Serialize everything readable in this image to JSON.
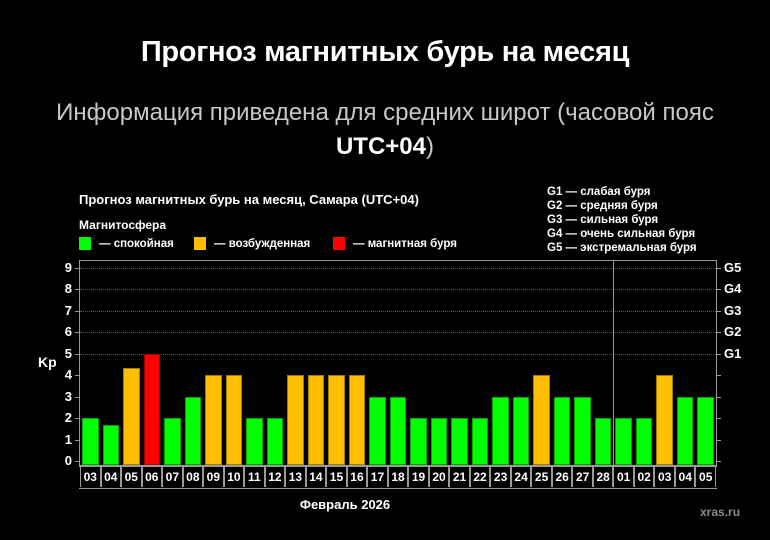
{
  "header": {
    "title": "Прогноз магнитных бурь на месяц",
    "subtitle_main": "Информация приведена для средних широт (часовой пояс",
    "subtitle_tz": "UTC+04",
    "subtitle_close": ")"
  },
  "legend": {
    "magnetosphere_label": "Магнитосфера",
    "items": [
      {
        "label": "— спокойная",
        "color": "#00ff00"
      },
      {
        "label": "— возбужденная",
        "color": "#ffbf00"
      },
      {
        "label": "— магнитная буря",
        "color": "#ff0000"
      }
    ],
    "g_scale": [
      "G1 — слабая буря",
      "G2 — средняя буря",
      "G3 — сильная буря",
      "G4 — очень сильная буря",
      "G5 — экстремальная буря"
    ]
  },
  "watermark": "xras.ru",
  "chart_data": {
    "type": "bar",
    "title": "Прогноз магнитных бурь на месяц, Самара (UTC+04)",
    "xlabel": "Февраль 2026",
    "ylabel": "Kp",
    "ylim": [
      0,
      9
    ],
    "yticks": [
      "0",
      "1",
      "2",
      "3",
      "4",
      "5",
      "6",
      "7",
      "8",
      "9"
    ],
    "right_axis_ticks": [
      {
        "label": "G1",
        "kp": 5
      },
      {
        "label": "G2",
        "kp": 6
      },
      {
        "label": "G3",
        "kp": 7
      },
      {
        "label": "G4",
        "kp": 8
      },
      {
        "label": "G5",
        "kp": 9
      }
    ],
    "grid": true,
    "month_separator_after_index": 25,
    "categories": [
      "03",
      "04",
      "05",
      "06",
      "07",
      "08",
      "09",
      "10",
      "11",
      "12",
      "13",
      "14",
      "15",
      "16",
      "17",
      "18",
      "19",
      "20",
      "21",
      "22",
      "23",
      "24",
      "25",
      "26",
      "27",
      "28",
      "01",
      "02",
      "03",
      "04",
      "05"
    ],
    "values": [
      2,
      1.67,
      4.33,
      5,
      2,
      3,
      4,
      4,
      2,
      2,
      4,
      4,
      4,
      4,
      3,
      3,
      2,
      2,
      2,
      2,
      3,
      3,
      4,
      3,
      3,
      2,
      2,
      2,
      4,
      3,
      3
    ],
    "levels": [
      "quiet",
      "quiet",
      "active",
      "storm",
      "quiet",
      "quiet",
      "active",
      "active",
      "quiet",
      "quiet",
      "active",
      "active",
      "active",
      "active",
      "quiet",
      "quiet",
      "quiet",
      "quiet",
      "quiet",
      "quiet",
      "quiet",
      "quiet",
      "active",
      "quiet",
      "quiet",
      "quiet",
      "quiet",
      "quiet",
      "active",
      "quiet",
      "quiet"
    ],
    "level_colors": {
      "quiet": "#00ff00",
      "active": "#ffbf00",
      "storm": "#ff0000"
    }
  }
}
